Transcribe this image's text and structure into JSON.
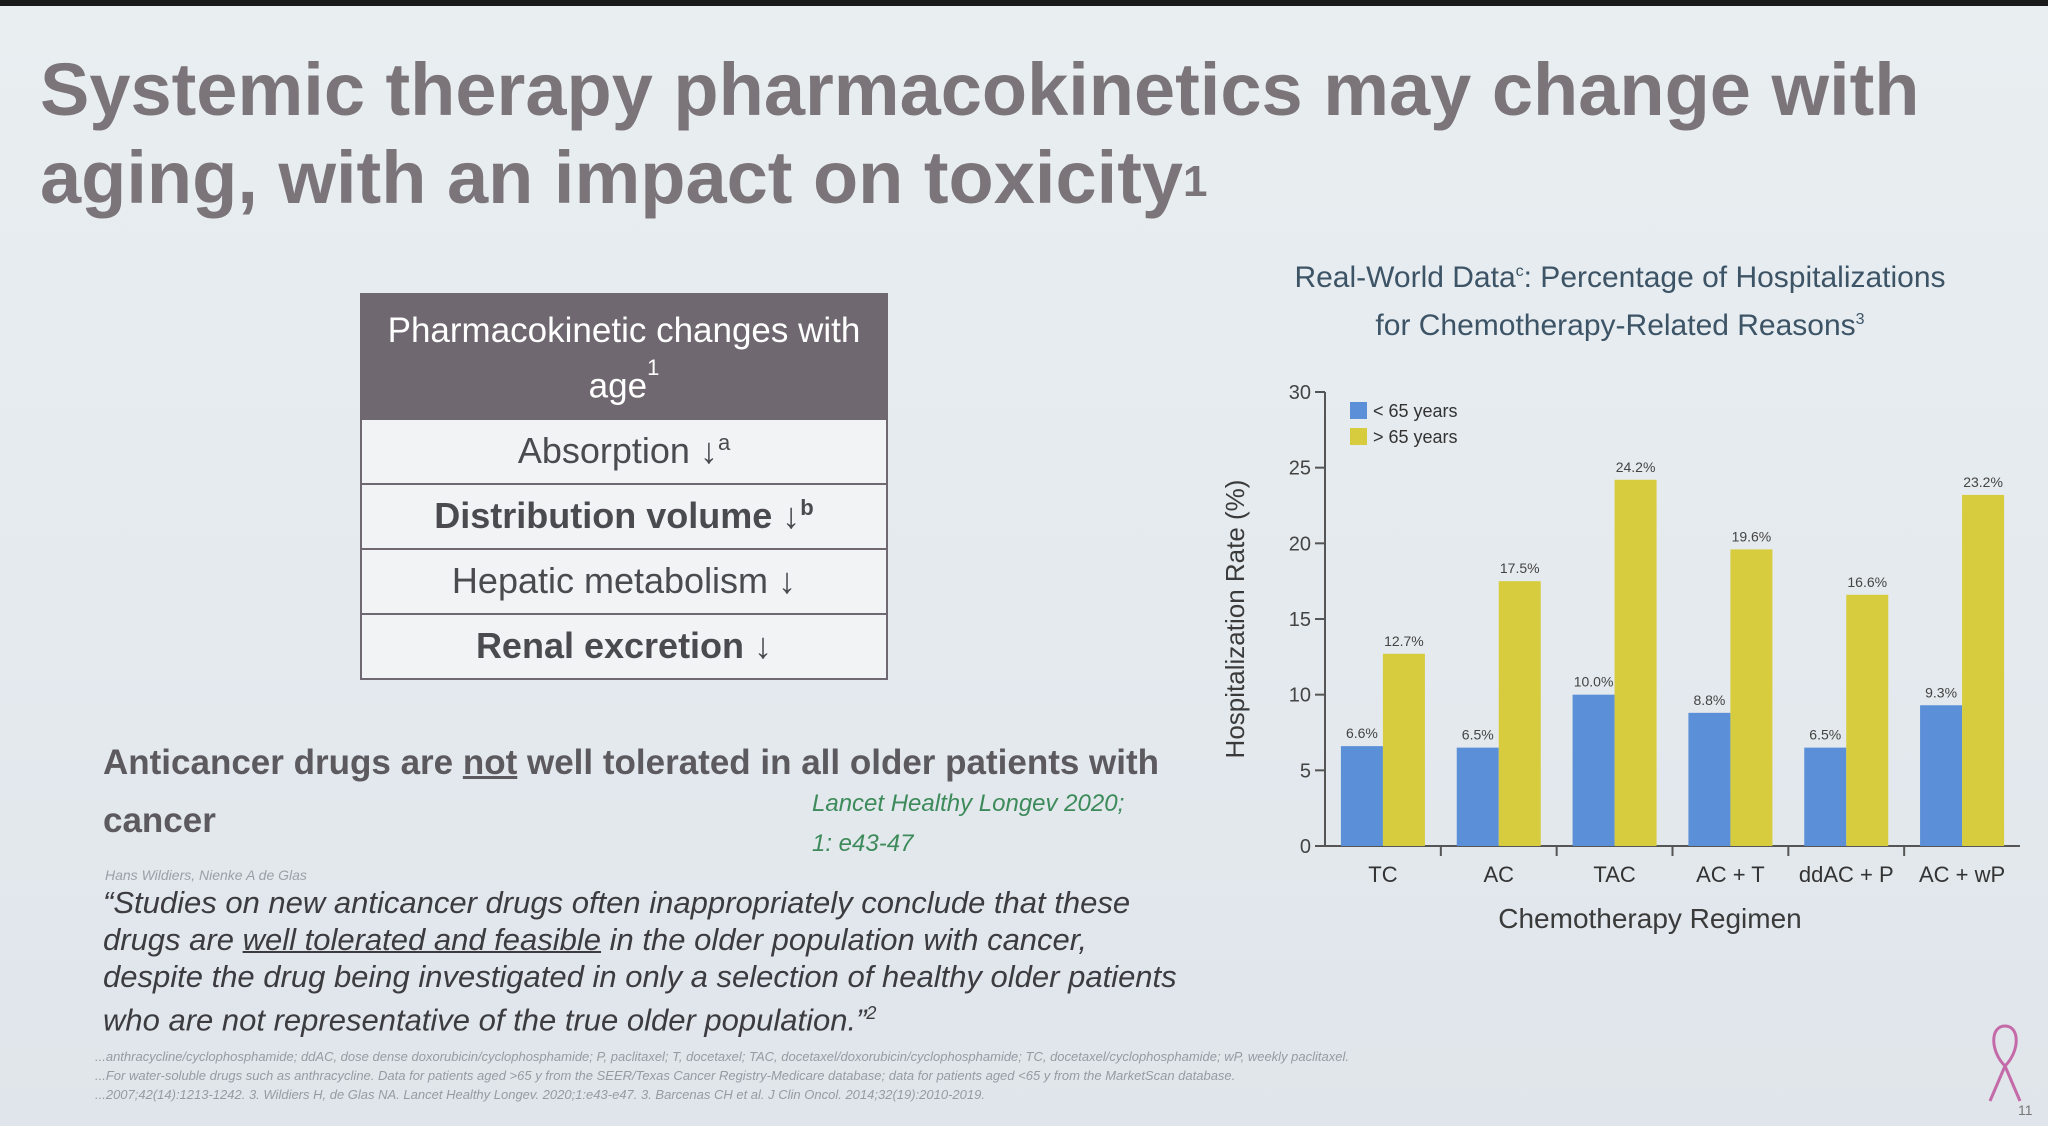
{
  "slide": {
    "title_main": "Systemic therapy pharmacokinetics may change with aging, with an impact on toxicity",
    "title_sup": "1",
    "page_number": "11"
  },
  "pk_table": {
    "header": "Pharmacokinetic changes with age",
    "header_sup": "1",
    "rows": [
      {
        "label": "Absorption",
        "arrow": "↓",
        "sup": "a",
        "bold": false
      },
      {
        "label": "Distribution volume",
        "arrow": "↓",
        "sup": "b",
        "bold": true
      },
      {
        "label": "Hepatic metabolism",
        "arrow": "↓",
        "sup": "",
        "bold": false
      },
      {
        "label": "Renal excretion",
        "arrow": "↓",
        "sup": "",
        "bold": true
      }
    ]
  },
  "tolerance": {
    "prefix": "Anticancer drugs are ",
    "emph": "not",
    "suffix": " well tolerated in all older patients with cancer",
    "citation_line1": "Lancet Healthy Longev 2020;",
    "citation_line2": "1: e43-47",
    "authors": "Hans Wildiers, Nienke A de Glas"
  },
  "quote": {
    "part1": "“Studies on new anticancer drugs often inappropriately conclude that these drugs are ",
    "underlined": "well tolerated and feasible",
    "part2": " in the older population with cancer, despite the drug being investigated in only a selection of healthy older patients who are not representative of the true older population.”",
    "sup": "2"
  },
  "footnotes": [
    "...anthracycline/cyclophosphamide; ddAC, dose dense doxorubicin/cyclophosphamide; P, paclitaxel; T, docetaxel; TAC, docetaxel/doxorubicin/cyclophosphamide; TC, docetaxel/cyclophosphamide; wP, weekly paclitaxel.",
    "...For water-soluble drugs such as anthracycline. Data for patients aged >65 y from the SEER/Texas Cancer Registry-Medicare database; data for patients aged <65 y from the MarketScan database.",
    "...2007;42(14):1213-1242. 3. Wildiers H, de Glas NA. Lancet Healthy Longev. 2020;1:e43-e47. 3. Barcenas CH et al. J Clin Oncol. 2014;32(19):2010-2019."
  ],
  "chart_data": {
    "type": "bar",
    "title_line1": "Real-World Data",
    "title_sup": "c",
    "title_line1_rest": ": Percentage of Hospitalizations",
    "title_line2": "for Chemotherapy-Related Reasons",
    "title_line2_sup": "3",
    "categories": [
      "TC",
      "AC",
      "TAC",
      "AC + T",
      "ddAC + P",
      "AC + wP"
    ],
    "series": [
      {
        "name": "< 65 years",
        "color": "#5b8fd8",
        "values": [
          6.6,
          6.5,
          10.0,
          8.8,
          6.5,
          9.3
        ],
        "labels": [
          "6.6%",
          "6.5%",
          "10.0%",
          "8.8%",
          "6.5%",
          "9.3%"
        ]
      },
      {
        "name": "> 65 years",
        "color": "#d6cc3e",
        "values": [
          12.7,
          17.5,
          24.2,
          19.6,
          16.6,
          23.2
        ],
        "labels": [
          "12.7%",
          "17.5%",
          "24.2%",
          "19.6%",
          "16.6%",
          "23.2%"
        ]
      }
    ],
    "ylabel": "Hospitalization Rate (%)",
    "xlabel": "Chemotherapy Regimen",
    "ylim": [
      0,
      30
    ],
    "yticks": [
      0,
      5,
      10,
      15,
      20,
      25,
      30
    ],
    "legend_position": "top-left"
  }
}
